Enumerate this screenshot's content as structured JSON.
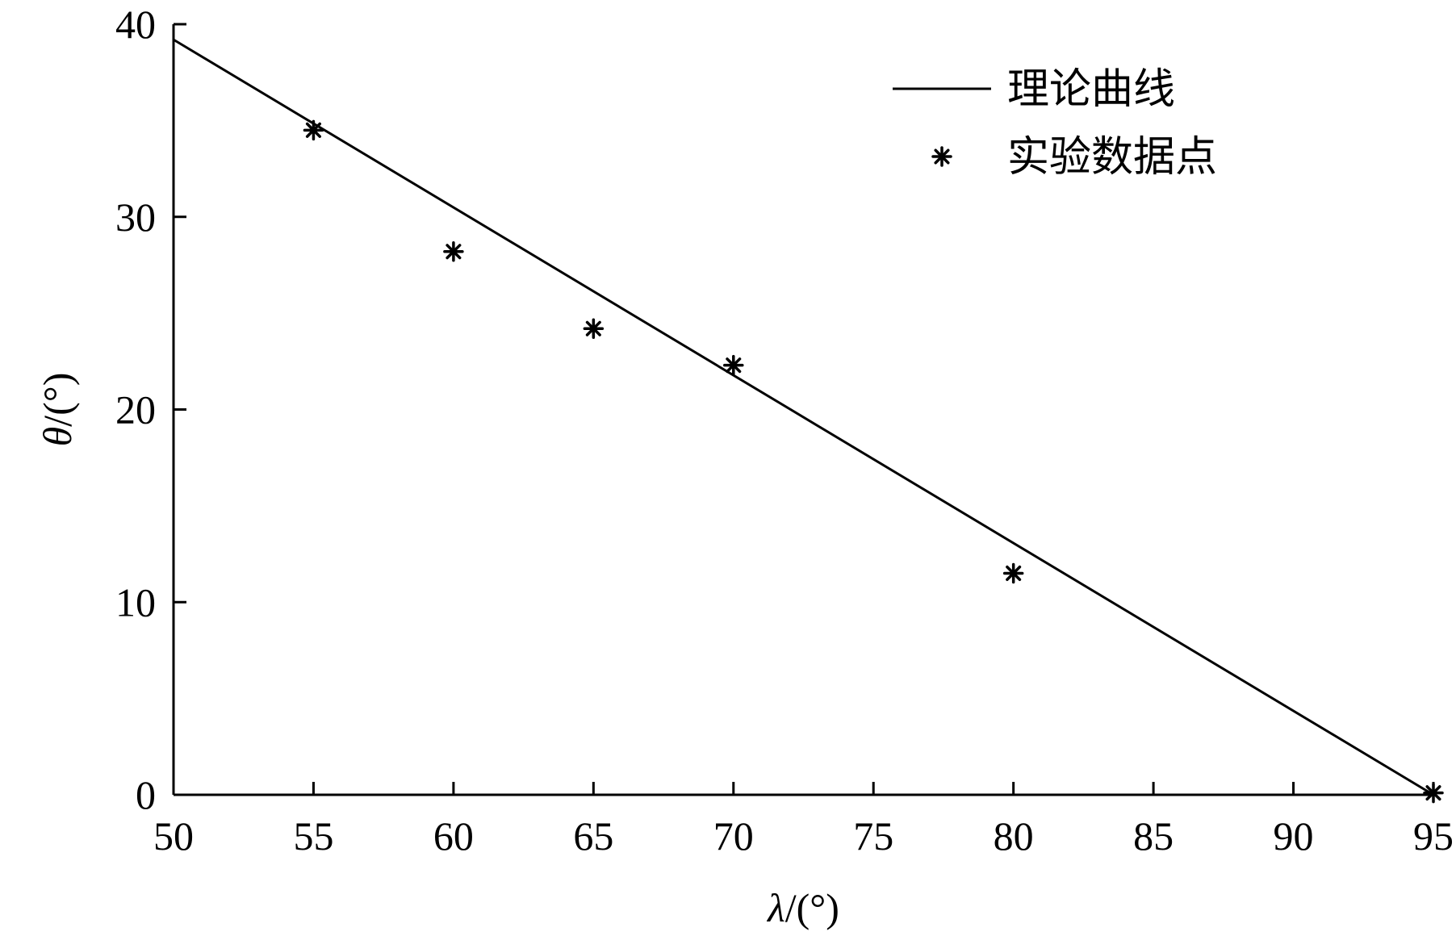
{
  "chart_data": {
    "type": "line",
    "title": "",
    "xlabel_symbol": "λ",
    "xlabel_unit": "/(°)",
    "ylabel_symbol": "θ",
    "ylabel_unit": "/(°)",
    "xlim": [
      50,
      95
    ],
    "ylim": [
      0,
      40
    ],
    "xticks": [
      50,
      55,
      60,
      65,
      70,
      75,
      80,
      85,
      90,
      95
    ],
    "yticks": [
      0,
      10,
      20,
      30,
      40
    ],
    "grid": false,
    "legend_position": "top-right",
    "series": [
      {
        "name": "理论曲线",
        "kind": "line",
        "color": "#000000",
        "x": [
          50,
          95
        ],
        "y": [
          39.2,
          0
        ]
      },
      {
        "name": "实验数据点",
        "kind": "scatter",
        "marker": "asterisk",
        "color": "#000000",
        "x": [
          55,
          60,
          65,
          70,
          80,
          95
        ],
        "y": [
          34.5,
          28.2,
          24.2,
          22.3,
          11.5,
          0.1
        ]
      }
    ]
  }
}
